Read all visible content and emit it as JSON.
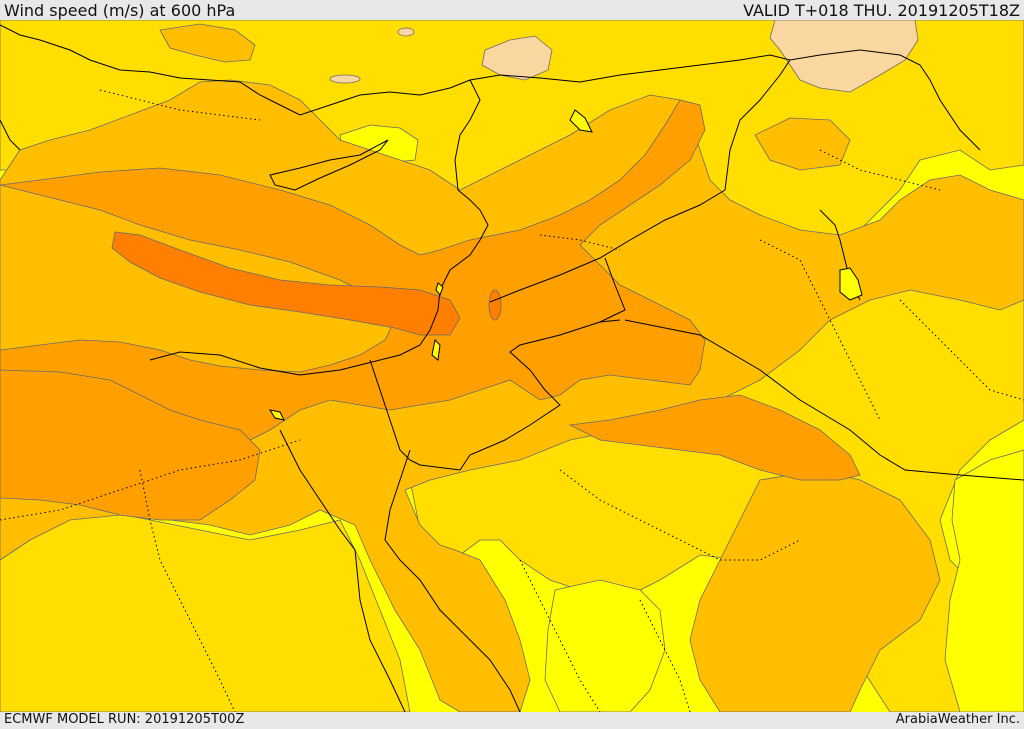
{
  "header": {
    "title": "Wind speed (m/s) at 600 hPa",
    "valid": "VALID T+018 THU. 20191205T18Z"
  },
  "footer": {
    "model_run": "ECMWF MODEL RUN: 20191205T00Z",
    "credit": "ArabiaWeather Inc."
  },
  "map": {
    "field": "wind-speed-600hPa",
    "colors": {
      "lowest": "#ffff00",
      "low": "#ffde00",
      "moderate": "#ffbf00",
      "high": "#ff9f00",
      "highest": "#ff7f00",
      "cold_patch": "#fad7a0",
      "border": "#000000",
      "contour": "#6b6b6b"
    }
  }
}
